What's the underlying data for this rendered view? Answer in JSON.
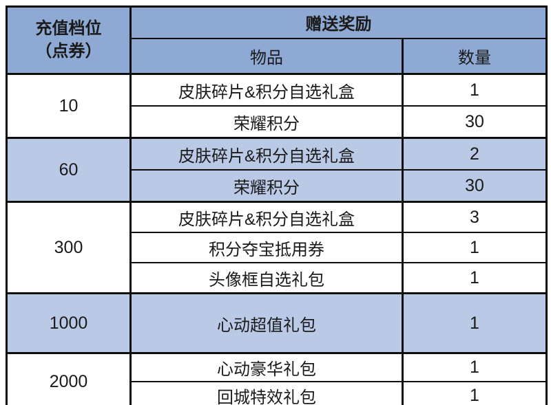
{
  "table": {
    "header": {
      "tier_line1": "充值档位",
      "tier_line2": "（点券）",
      "rewards": "赠送奖励",
      "item": "物品",
      "qty": "数量"
    },
    "groups": [
      {
        "tier": "10",
        "shade": "white",
        "rows": [
          {
            "item": "皮肤碎片&积分自选礼盒",
            "qty": "1"
          },
          {
            "item": "荣耀积分",
            "qty": "30"
          }
        ]
      },
      {
        "tier": "60",
        "shade": "blue",
        "rows": [
          {
            "item": "皮肤碎片&积分自选礼盒",
            "qty": "2"
          },
          {
            "item": "荣耀积分",
            "qty": "30"
          }
        ]
      },
      {
        "tier": "300",
        "shade": "white",
        "rows": [
          {
            "item": "皮肤碎片&积分自选礼盒",
            "qty": "3"
          },
          {
            "item": "积分夺宝抵用券",
            "qty": "1"
          },
          {
            "item": "头像框自选礼包",
            "qty": "1"
          }
        ]
      },
      {
        "tier": "1000",
        "shade": "blue",
        "rows": [
          {
            "item": "心动超值礼包",
            "qty": "1"
          }
        ]
      },
      {
        "tier": "2000",
        "shade": "white",
        "rows": [
          {
            "item": "心动豪华礼包",
            "qty": "1"
          },
          {
            "item": "回城特效礼包",
            "qty": "1"
          }
        ]
      }
    ],
    "colors": {
      "header_bg": "#8EA9D3",
      "row_blue": "#B9C9E6",
      "row_white": "#FFFFFF",
      "border": "#000000",
      "text": "#1A1A1A"
    }
  },
  "chart_data": {
    "type": "table",
    "title": "",
    "columns": [
      "充值档位（点券）",
      "物品",
      "数量"
    ],
    "rows": [
      [
        "10",
        "皮肤碎片&积分自选礼盒",
        1
      ],
      [
        "10",
        "荣耀积分",
        30
      ],
      [
        "60",
        "皮肤碎片&积分自选礼盒",
        2
      ],
      [
        "60",
        "荣耀积分",
        30
      ],
      [
        "300",
        "皮肤碎片&积分自选礼盒",
        3
      ],
      [
        "300",
        "积分夺宝抵用券",
        1
      ],
      [
        "300",
        "头像框自选礼包",
        1
      ],
      [
        "1000",
        "心动超值礼包",
        1
      ],
      [
        "2000",
        "心动豪华礼包",
        1
      ],
      [
        "2000",
        "回城特效礼包",
        1
      ]
    ],
    "layout": {
      "grid": "black-borders",
      "shading": "tier groups alternate white and light blue (#B9C9E6), headers #8EA9D3"
    }
  }
}
